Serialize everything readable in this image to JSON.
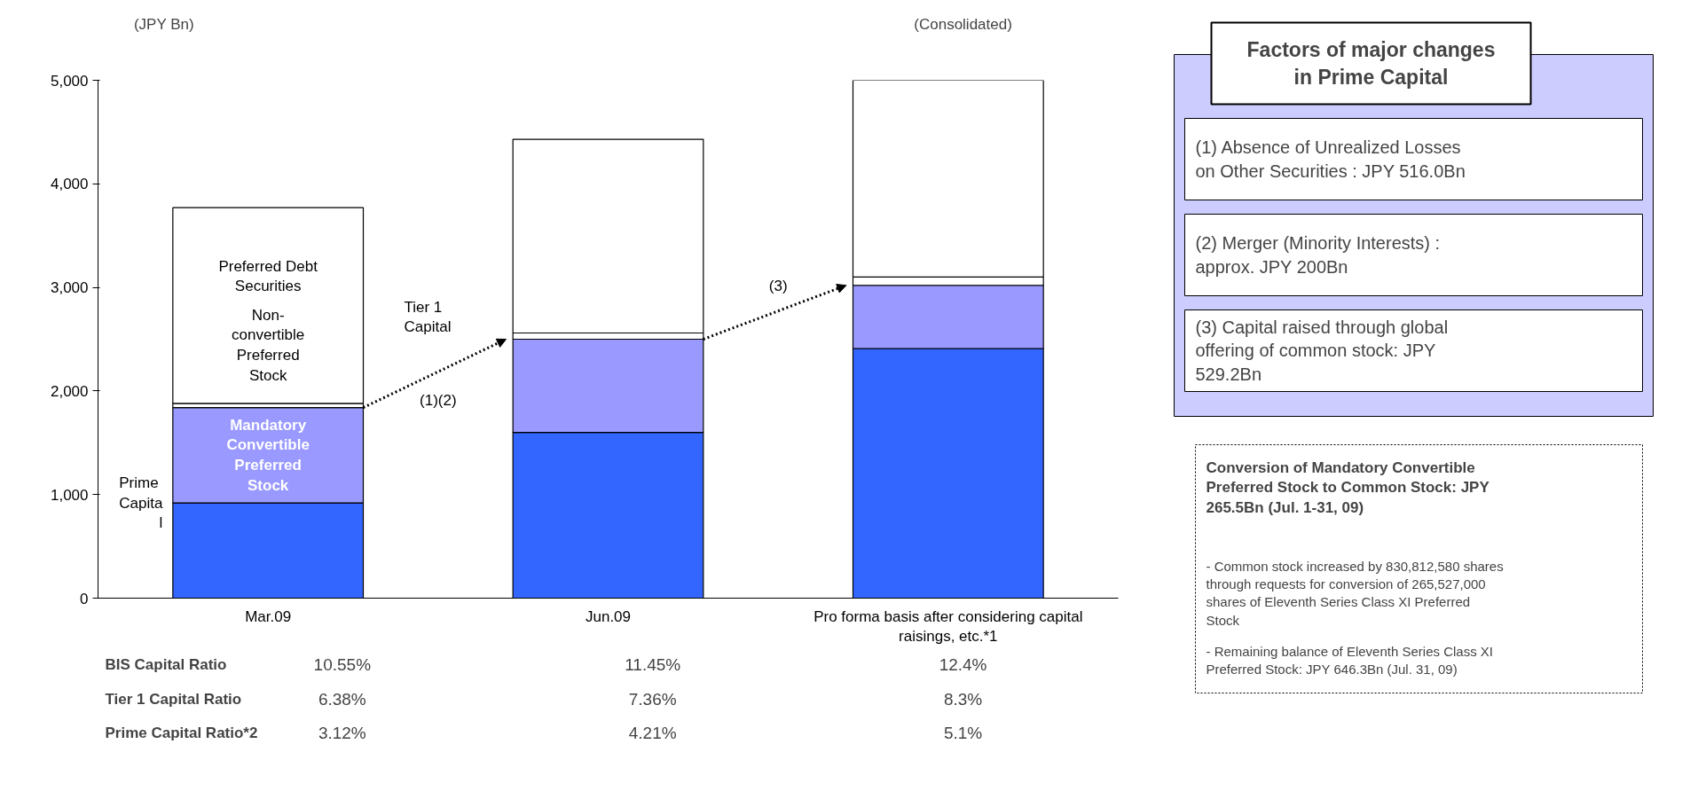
{
  "chart_data": {
    "type": "bar",
    "stacked": true,
    "ylabel": "(JPY Bn)",
    "categories": [
      "Mar.09",
      "Jun.09",
      "Pro forma basis after considering capital raisings, etc.*1"
    ],
    "series": [
      {
        "color": "#3366ff",
        "values": [
          920,
          1600,
          2410
        ]
      },
      {
        "name": "Mandatory Convertible Preferred Stock",
        "color": "#9999ff",
        "values": [
          920,
          900,
          610
        ]
      },
      {
        "name": "Non-convertible Preferred Stock",
        "color": "#ffffff",
        "values": [
          40,
          60,
          80
        ]
      },
      {
        "name": "Preferred Debt Securities",
        "color": "#ffffff",
        "values": [
          1890,
          1870,
          1900
        ]
      }
    ],
    "ylim": [
      0,
      5000
    ],
    "yticks": [
      0,
      {
        "value": 1000,
        "label": "1,000"
      },
      {
        "value": 2000,
        "label": "2,000"
      },
      {
        "value": 3000,
        "label": "3,000"
      },
      {
        "value": 4000,
        "label": "4,000"
      },
      {
        "value": 5000,
        "label": "5,000"
      }
    ],
    "grid": false,
    "annotations": [
      "(Consolidated)",
      "Tier 1 Capital",
      "Prime Capital",
      "(1)(2)",
      "(3)",
      "BIS Capital Ratio",
      "10.55%",
      "11.45%",
      "12.4%",
      "Tier 1 Capital Ratio",
      "6.38%",
      "7.36%",
      "8.3%",
      "Prime Capital Ratio*2",
      "3.12%",
      "4.21%",
      "5.1%",
      "Factors of major changes in Prime Capital",
      "(1) Absence of Unrealized Losses on Other Securities : JPY 516.0Bn",
      "(2) Merger (Minority Interests) : approx. JPY 200Bn",
      "(3) Capital raised through global offering of common stock: JPY 529.2Bn",
      "Conversion of Mandatory Convertible Preferred Stock to Common Stock: JPY 265.5Bn (Jul. 1-31, 09)",
      "- Common stock increased by 830,812,580 shares through requests for conversion of 265,527,000 shares of Eleventh Series Class XI Preferred Stock",
      "- Remaining balance of Eleventh Series Class XI Preferred Stock: JPY 646.3Bn (Jul. 31, 09)"
    ]
  }
}
